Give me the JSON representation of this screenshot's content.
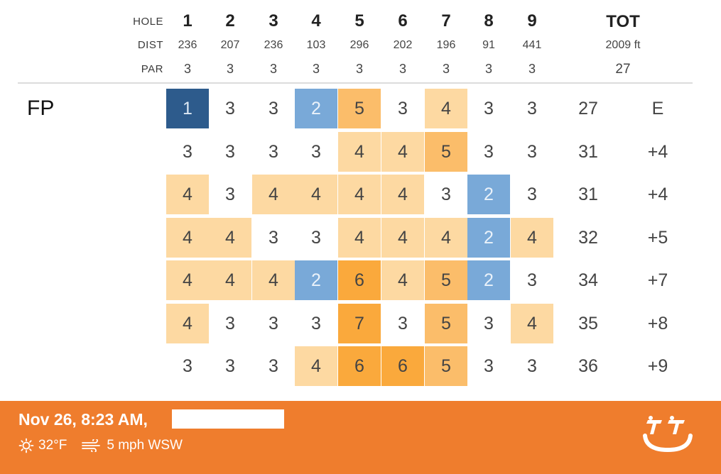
{
  "header": {
    "hole_label": "HOLE",
    "dist_label": "DIST",
    "par_label": "PAR",
    "holes": [
      "1",
      "2",
      "3",
      "4",
      "5",
      "6",
      "7",
      "8",
      "9"
    ],
    "dist": [
      "236",
      "207",
      "236",
      "103",
      "296",
      "202",
      "196",
      "91",
      "441"
    ],
    "par": [
      "3",
      "3",
      "3",
      "3",
      "3",
      "3",
      "3",
      "3",
      "3"
    ],
    "tot_label": "TOT",
    "tot_dist": "2009 ft",
    "tot_par": "27"
  },
  "player": "FP",
  "rows": [
    {
      "scores": [
        "1",
        "3",
        "3",
        "2",
        "5",
        "3",
        "4",
        "3",
        "3"
      ],
      "total": "27",
      "to_par": "E"
    },
    {
      "scores": [
        "3",
        "3",
        "3",
        "3",
        "4",
        "4",
        "5",
        "3",
        "3"
      ],
      "total": "31",
      "to_par": "+4"
    },
    {
      "scores": [
        "4",
        "3",
        "4",
        "4",
        "4",
        "4",
        "3",
        "2",
        "3"
      ],
      "total": "31",
      "to_par": "+4"
    },
    {
      "scores": [
        "4",
        "4",
        "3",
        "3",
        "4",
        "4",
        "4",
        "2",
        "4"
      ],
      "total": "32",
      "to_par": "+5"
    },
    {
      "scores": [
        "4",
        "4",
        "4",
        "2",
        "6",
        "4",
        "5",
        "2",
        "3"
      ],
      "total": "34",
      "to_par": "+7"
    },
    {
      "scores": [
        "4",
        "3",
        "3",
        "3",
        "7",
        "3",
        "5",
        "3",
        "4"
      ],
      "total": "35",
      "to_par": "+8"
    },
    {
      "scores": [
        "3",
        "3",
        "3",
        "4",
        "6",
        "6",
        "5",
        "3",
        "3"
      ],
      "total": "36",
      "to_par": "+9"
    }
  ],
  "footer": {
    "date": "Nov 26, 8:23 AM,",
    "temperature": "32°F",
    "wind": "5 mph WSW",
    "icons": [
      "sun-icon",
      "wind-icon",
      "udisc-logo-icon"
    ]
  },
  "colors": {
    "eagle": "#2d5b8c",
    "birdie": "#79a9d8",
    "bogey": "#fdd9a2",
    "double_bogey": "#fbbd6a",
    "triple_bogey": "#faa93c",
    "footer": "#ef7d2d"
  }
}
